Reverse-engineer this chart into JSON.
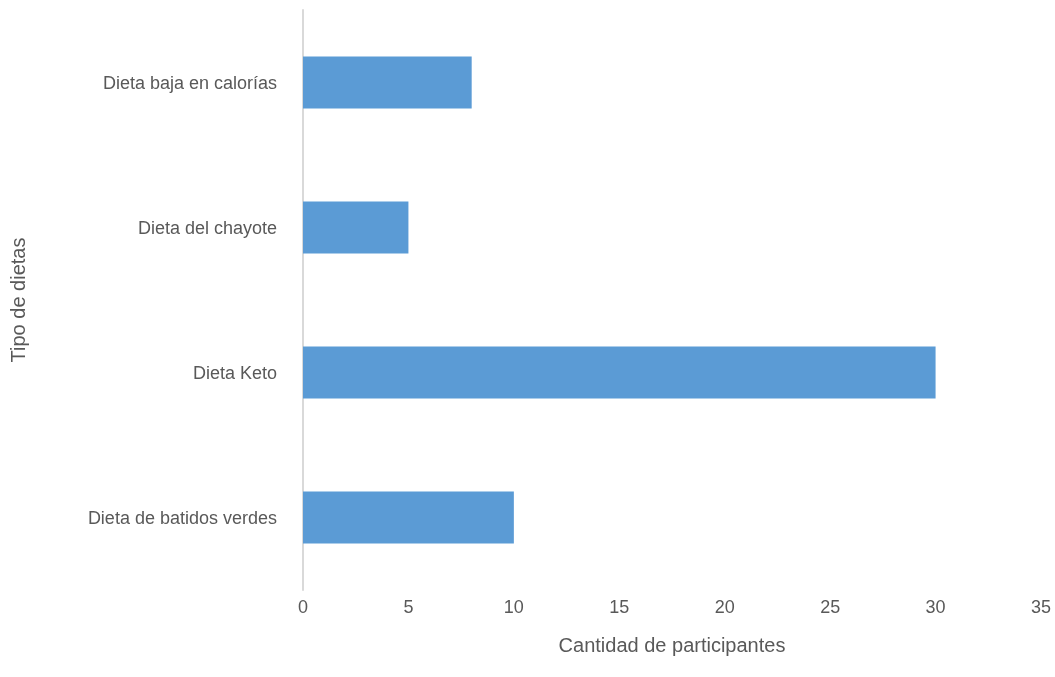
{
  "chart_data": {
    "type": "bar",
    "orientation": "horizontal",
    "xlabel": "Cantidad de participantes",
    "ylabel": "Tipo de dietas",
    "categories": [
      "Dieta baja en calorías",
      "Dieta del chayote",
      "Dieta Keto",
      "Dieta de batidos verdes"
    ],
    "values": [
      8,
      5,
      30,
      10
    ],
    "color": "#5b9bd5",
    "xlim": [
      0,
      35
    ],
    "xticks": [
      0,
      5,
      10,
      15,
      20,
      25,
      30,
      35
    ],
    "grid": false
  }
}
